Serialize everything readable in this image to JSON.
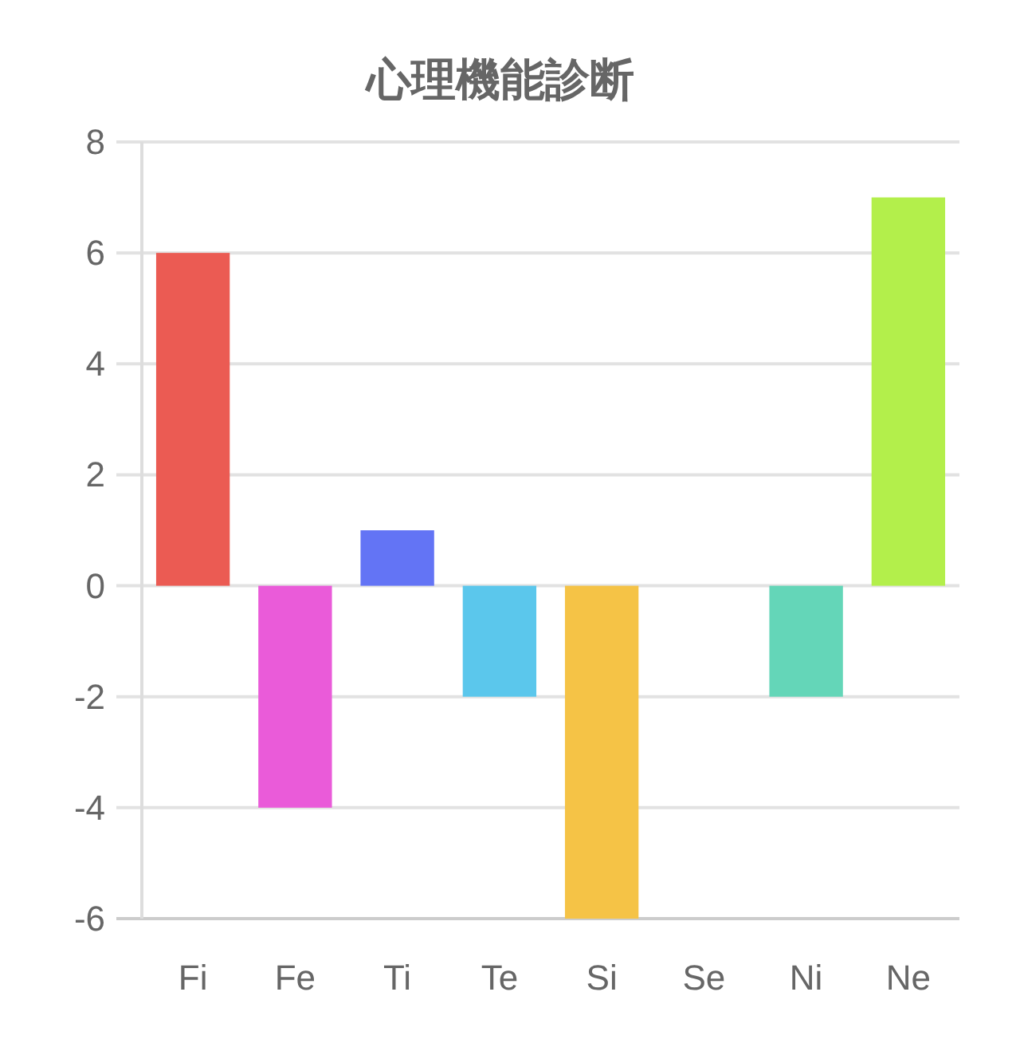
{
  "chart_data": {
    "type": "bar",
    "title": "心理機能診断",
    "categories": [
      "Fi",
      "Fe",
      "Ti",
      "Te",
      "Si",
      "Se",
      "Ni",
      "Ne"
    ],
    "values": [
      6,
      -4,
      1,
      -2,
      -6,
      0,
      -2,
      7
    ],
    "colors": [
      "#eb5b53",
      "#ea5bd9",
      "#6374f5",
      "#5bc7ec",
      "#f5c346",
      null,
      "#64d6b8",
      "#b3ef4b"
    ],
    "ylim": [
      -6,
      8
    ],
    "yticks": [
      -6,
      -4,
      -2,
      0,
      2,
      4,
      6,
      8
    ],
    "grid": "y"
  }
}
